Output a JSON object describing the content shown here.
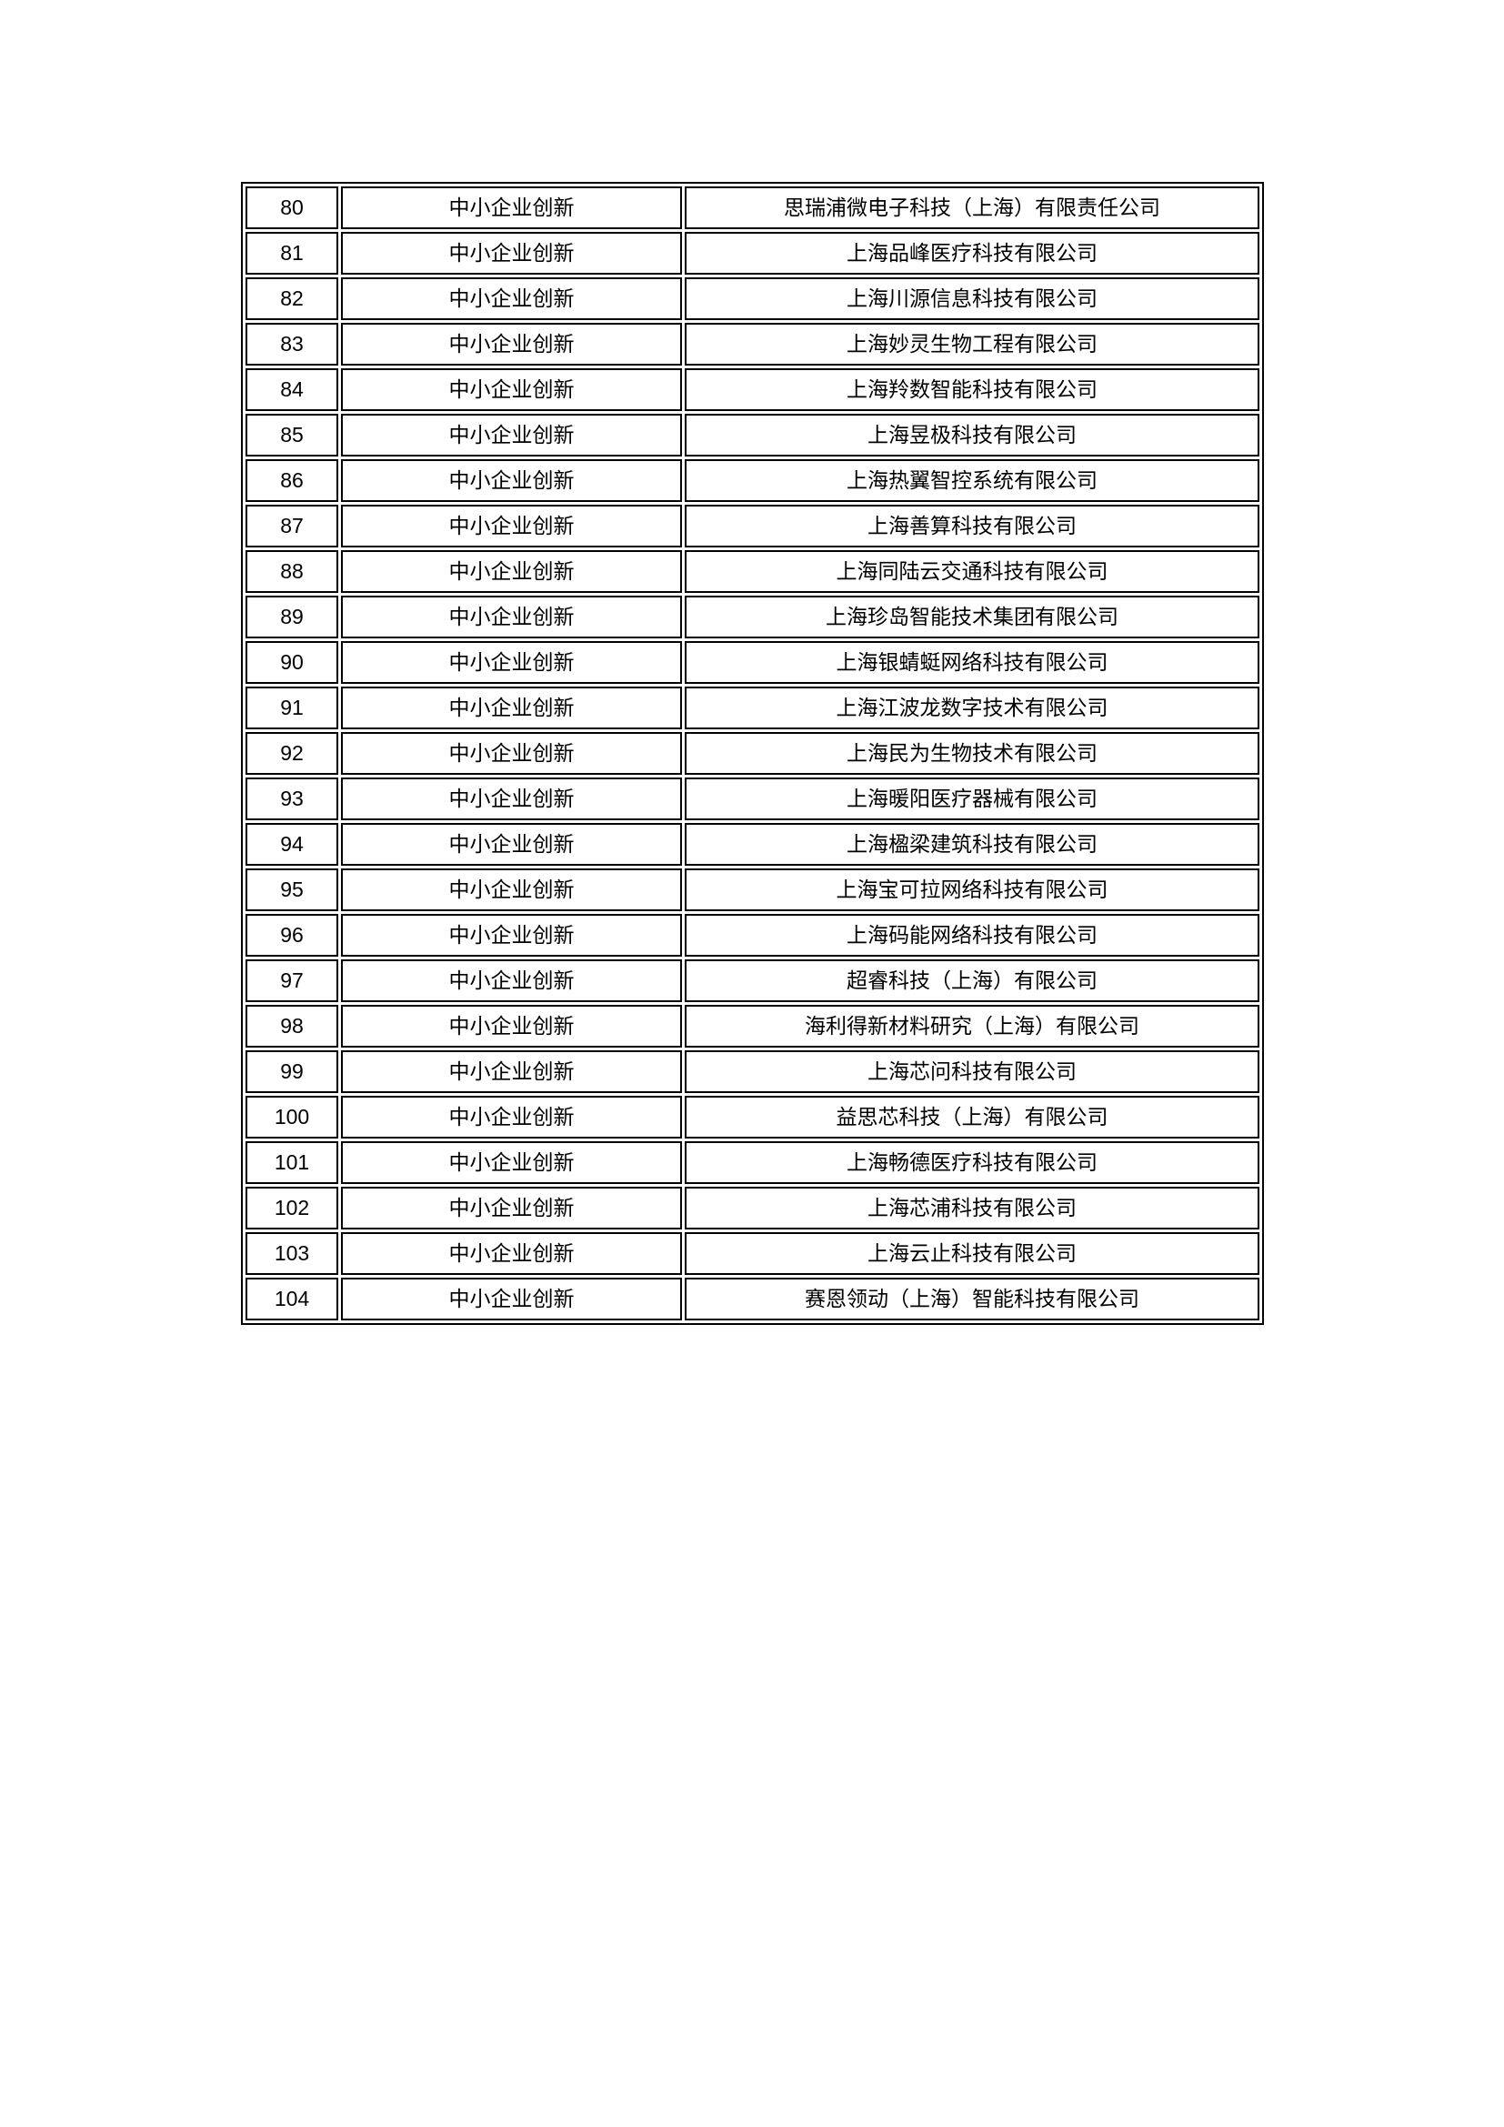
{
  "document": {
    "category_label": "中小企业创新",
    "rows": [
      {
        "no": "80",
        "category": "中小企业创新",
        "company": "思瑞浦微电子科技（上海）有限责任公司"
      },
      {
        "no": "81",
        "category": "中小企业创新",
        "company": "上海品峰医疗科技有限公司"
      },
      {
        "no": "82",
        "category": "中小企业创新",
        "company": "上海川源信息科技有限公司"
      },
      {
        "no": "83",
        "category": "中小企业创新",
        "company": "上海妙灵生物工程有限公司"
      },
      {
        "no": "84",
        "category": "中小企业创新",
        "company": "上海羚数智能科技有限公司"
      },
      {
        "no": "85",
        "category": "中小企业创新",
        "company": "上海昱极科技有限公司"
      },
      {
        "no": "86",
        "category": "中小企业创新",
        "company": "上海热翼智控系统有限公司"
      },
      {
        "no": "87",
        "category": "中小企业创新",
        "company": "上海善算科技有限公司"
      },
      {
        "no": "88",
        "category": "中小企业创新",
        "company": "上海同陆云交通科技有限公司"
      },
      {
        "no": "89",
        "category": "中小企业创新",
        "company": "上海珍岛智能技术集团有限公司"
      },
      {
        "no": "90",
        "category": "中小企业创新",
        "company": "上海银蜻蜓网络科技有限公司"
      },
      {
        "no": "91",
        "category": "中小企业创新",
        "company": "上海江波龙数字技术有限公司"
      },
      {
        "no": "92",
        "category": "中小企业创新",
        "company": "上海民为生物技术有限公司"
      },
      {
        "no": "93",
        "category": "中小企业创新",
        "company": "上海暖阳医疗器械有限公司"
      },
      {
        "no": "94",
        "category": "中小企业创新",
        "company": "上海楹梁建筑科技有限公司"
      },
      {
        "no": "95",
        "category": "中小企业创新",
        "company": "上海宝可拉网络科技有限公司"
      },
      {
        "no": "96",
        "category": "中小企业创新",
        "company": "上海码能网络科技有限公司"
      },
      {
        "no": "97",
        "category": "中小企业创新",
        "company": "超睿科技（上海）有限公司"
      },
      {
        "no": "98",
        "category": "中小企业创新",
        "company": "海利得新材料研究（上海）有限公司"
      },
      {
        "no": "99",
        "category": "中小企业创新",
        "company": "上海芯问科技有限公司"
      },
      {
        "no": "100",
        "category": "中小企业创新",
        "company": "益思芯科技（上海）有限公司"
      },
      {
        "no": "101",
        "category": "中小企业创新",
        "company": "上海畅德医疗科技有限公司"
      },
      {
        "no": "102",
        "category": "中小企业创新",
        "company": "上海芯浦科技有限公司"
      },
      {
        "no": "103",
        "category": "中小企业创新",
        "company": "上海云止科技有限公司"
      },
      {
        "no": "104",
        "category": "中小企业创新",
        "company": "赛恩领动（上海）智能科技有限公司"
      }
    ],
    "colors": {
      "page_background": "#ffffff",
      "border": "#000000",
      "text": "#000000"
    }
  }
}
